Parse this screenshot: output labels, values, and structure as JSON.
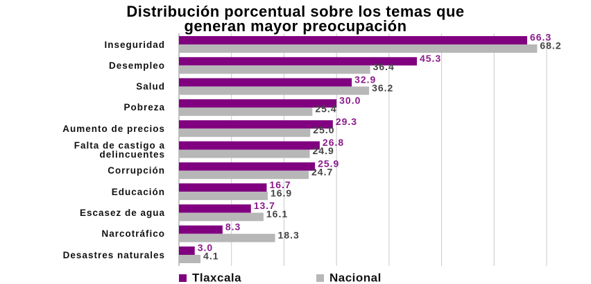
{
  "chart_data": {
    "type": "bar",
    "orientation": "horizontal",
    "title": [
      "Distribución porcentual sobre los temas que",
      "generan mayor preocupación"
    ],
    "categories": [
      "Inseguridad",
      "Desempleo",
      "Salud",
      "Pobreza",
      "Aumento de precios",
      "Falta de castigo a delincuentes",
      "Corrupción",
      "Educación",
      "Escasez de agua",
      "Narcotráfico",
      "Desastres naturales"
    ],
    "series": [
      {
        "name": "Tlaxcala",
        "color": "#800080",
        "label_color": "#8b1a8b",
        "values": [
          66.3,
          45.3,
          32.9,
          30,
          29.3,
          26.8,
          25.9,
          16.7,
          13.7,
          8.3,
          3
        ],
        "value_labels": [
          "66.3",
          "45.3",
          "32.9",
          "30.0",
          "29.3",
          "26.8",
          "25.9",
          "16.7",
          "13.7",
          "8.3",
          "3.0"
        ]
      },
      {
        "name": "Nacional",
        "color": "#b7b7b7",
        "label_color": "#444444",
        "values": [
          68.2,
          36.4,
          36.2,
          25.4,
          25,
          24.9,
          24.7,
          16.9,
          16.1,
          18.3,
          4.1
        ],
        "value_labels": [
          "68.2",
          "36.4",
          "36.2",
          "25.4",
          "25.0",
          "24.9",
          "24.7",
          "16.9",
          "16.1",
          "18.3",
          "4.1"
        ]
      }
    ],
    "xlim": [
      0,
      70
    ],
    "xticks": [
      0,
      10,
      20,
      30,
      40,
      50,
      60,
      70
    ],
    "grid": true,
    "legend": "bottom"
  }
}
